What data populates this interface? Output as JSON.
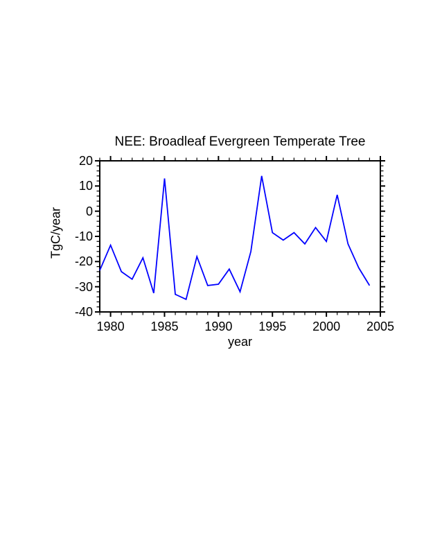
{
  "page": {
    "background": "#ffffff"
  },
  "chart_data": {
    "type": "line",
    "title": "NEE: Broadleaf Evergreen Temperate Tree",
    "xlabel": "year",
    "ylabel": "TgC/year",
    "x_range": [
      1979,
      2005
    ],
    "y_range": [
      -40,
      20
    ],
    "x_major_ticks": [
      1980,
      1985,
      1990,
      1995,
      2000,
      2005
    ],
    "x_tick_labels": [
      "1980",
      "1985",
      "1990",
      "1995",
      "2000",
      "2005"
    ],
    "x_minor_step": 1,
    "y_major_ticks": [
      20,
      10,
      0,
      -10,
      -20,
      -30,
      -40
    ],
    "y_tick_labels": [
      "20",
      "10",
      "0",
      "-10",
      "-20",
      "-30",
      "-40"
    ],
    "y_minor_step": 2,
    "grid": false,
    "legend_position": "none",
    "line_color": "#0000ff",
    "axis_color": "#000000",
    "series": [
      {
        "name": "NEE",
        "x": [
          1979,
          1980,
          1981,
          1982,
          1983,
          1984,
          1985,
          1986,
          1987,
          1988,
          1989,
          1990,
          1991,
          1992,
          1993,
          1994,
          1995,
          1996,
          1997,
          1998,
          1999,
          2000,
          2001,
          2002,
          2003,
          2004
        ],
        "values": [
          -23.5,
          -13.5,
          -24,
          -27,
          -18.5,
          -32.5,
          13,
          -33,
          -35,
          -18,
          -29.5,
          -29,
          -23,
          -32,
          -16,
          14,
          -8.5,
          -11.5,
          -8.5,
          -13,
          -6.5,
          -12,
          6.5,
          -13,
          -22.5,
          -29.5
        ]
      }
    ]
  }
}
